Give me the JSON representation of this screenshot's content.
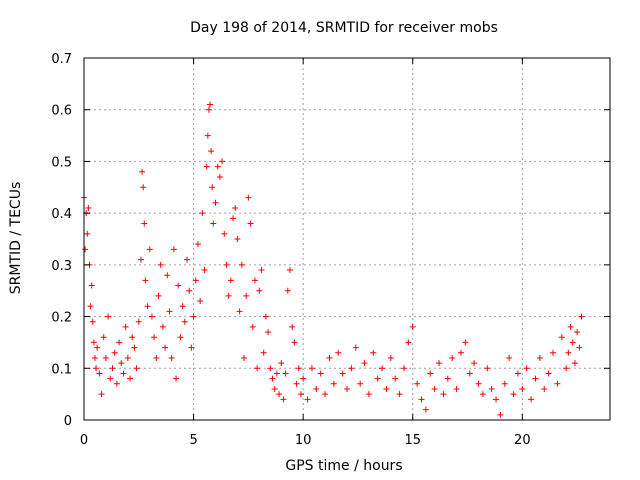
{
  "chart_data": {
    "type": "scatter",
    "title": "Day 198 of 2014, SRMTID for receiver mobs",
    "xlabel": "GPS time / hours",
    "ylabel": "SRMTID / TECUs",
    "xlim": [
      0,
      24
    ],
    "ylim": [
      0,
      0.7
    ],
    "xticks": [
      0,
      5,
      10,
      15,
      20
    ],
    "xtick_labels": [
      "0",
      "5",
      "10",
      "15",
      "20"
    ],
    "yticks": [
      0,
      0.1,
      0.2,
      0.3,
      0.4,
      0.5,
      0.6,
      0.7
    ],
    "ytick_labels": [
      "0",
      "0.1",
      "0.2",
      "0.3",
      "0.4",
      "0.5",
      "0.6",
      "0.7"
    ],
    "grid": true,
    "marker": "+",
    "color": "#ff0000",
    "series": [
      {
        "name": "SRMTID",
        "points": [
          [
            0.0,
            0.43
          ],
          [
            0.05,
            0.33
          ],
          [
            0.1,
            0.4
          ],
          [
            0.15,
            0.36
          ],
          [
            0.2,
            0.41
          ],
          [
            0.25,
            0.3
          ],
          [
            0.3,
            0.22
          ],
          [
            0.35,
            0.26
          ],
          [
            0.4,
            0.19
          ],
          [
            0.45,
            0.15
          ],
          [
            0.5,
            0.12
          ],
          [
            0.55,
            0.1
          ],
          [
            0.6,
            0.14
          ],
          [
            0.7,
            0.09
          ],
          [
            0.8,
            0.05
          ],
          [
            0.9,
            0.16
          ],
          [
            1.0,
            0.12
          ],
          [
            1.1,
            0.2
          ],
          [
            1.2,
            0.08
          ],
          [
            1.3,
            0.1
          ],
          [
            1.4,
            0.13
          ],
          [
            1.5,
            0.07
          ],
          [
            1.6,
            0.15
          ],
          [
            1.7,
            0.11
          ],
          [
            1.8,
            0.09
          ],
          [
            1.9,
            0.18
          ],
          [
            2.0,
            0.12
          ],
          [
            2.1,
            0.08
          ],
          [
            2.2,
            0.16
          ],
          [
            2.3,
            0.14
          ],
          [
            2.4,
            0.1
          ],
          [
            2.5,
            0.19
          ],
          [
            2.6,
            0.31
          ],
          [
            2.65,
            0.48
          ],
          [
            2.7,
            0.45
          ],
          [
            2.75,
            0.38
          ],
          [
            2.8,
            0.27
          ],
          [
            2.9,
            0.22
          ],
          [
            3.0,
            0.33
          ],
          [
            3.1,
            0.2
          ],
          [
            3.2,
            0.16
          ],
          [
            3.3,
            0.12
          ],
          [
            3.4,
            0.24
          ],
          [
            3.5,
            0.3
          ],
          [
            3.6,
            0.18
          ],
          [
            3.7,
            0.14
          ],
          [
            3.8,
            0.28
          ],
          [
            3.9,
            0.21
          ],
          [
            4.0,
            0.12
          ],
          [
            4.1,
            0.33
          ],
          [
            4.2,
            0.08
          ],
          [
            4.3,
            0.26
          ],
          [
            4.4,
            0.16
          ],
          [
            4.5,
            0.22
          ],
          [
            4.6,
            0.19
          ],
          [
            4.7,
            0.31
          ],
          [
            4.8,
            0.25
          ],
          [
            4.9,
            0.14
          ],
          [
            5.0,
            0.2
          ],
          [
            5.1,
            0.27
          ],
          [
            5.2,
            0.34
          ],
          [
            5.3,
            0.23
          ],
          [
            5.4,
            0.4
          ],
          [
            5.5,
            0.29
          ],
          [
            5.6,
            0.49
          ],
          [
            5.65,
            0.55
          ],
          [
            5.7,
            0.6
          ],
          [
            5.75,
            0.61
          ],
          [
            5.8,
            0.52
          ],
          [
            5.85,
            0.45
          ],
          [
            5.9,
            0.38
          ],
          [
            6.0,
            0.42
          ],
          [
            6.1,
            0.49
          ],
          [
            6.2,
            0.47
          ],
          [
            6.3,
            0.5
          ],
          [
            6.4,
            0.36
          ],
          [
            6.5,
            0.3
          ],
          [
            6.6,
            0.24
          ],
          [
            6.7,
            0.27
          ],
          [
            6.8,
            0.39
          ],
          [
            6.9,
            0.41
          ],
          [
            7.0,
            0.35
          ],
          [
            7.1,
            0.21
          ],
          [
            7.2,
            0.3
          ],
          [
            7.3,
            0.12
          ],
          [
            7.4,
            0.24
          ],
          [
            7.5,
            0.43
          ],
          [
            7.6,
            0.38
          ],
          [
            7.7,
            0.18
          ],
          [
            7.8,
            0.27
          ],
          [
            7.9,
            0.1
          ],
          [
            8.0,
            0.25
          ],
          [
            8.1,
            0.29
          ],
          [
            8.2,
            0.13
          ],
          [
            8.3,
            0.2
          ],
          [
            8.4,
            0.17
          ],
          [
            8.5,
            0.1
          ],
          [
            8.6,
            0.08
          ],
          [
            8.7,
            0.06
          ],
          [
            8.8,
            0.09
          ],
          [
            8.9,
            0.05
          ],
          [
            9.0,
            0.11
          ],
          [
            9.1,
            0.04
          ],
          [
            9.2,
            0.09
          ],
          [
            9.3,
            0.25
          ],
          [
            9.4,
            0.29
          ],
          [
            9.5,
            0.18
          ],
          [
            9.6,
            0.15
          ],
          [
            9.7,
            0.07
          ],
          [
            9.8,
            0.1
          ],
          [
            9.9,
            0.05
          ],
          [
            10.0,
            0.08
          ],
          [
            10.2,
            0.04
          ],
          [
            10.4,
            0.1
          ],
          [
            10.6,
            0.06
          ],
          [
            10.8,
            0.09
          ],
          [
            11.0,
            0.05
          ],
          [
            11.2,
            0.12
          ],
          [
            11.4,
            0.07
          ],
          [
            11.6,
            0.13
          ],
          [
            11.8,
            0.09
          ],
          [
            12.0,
            0.06
          ],
          [
            12.2,
            0.1
          ],
          [
            12.4,
            0.14
          ],
          [
            12.6,
            0.07
          ],
          [
            12.8,
            0.11
          ],
          [
            13.0,
            0.05
          ],
          [
            13.2,
            0.13
          ],
          [
            13.4,
            0.08
          ],
          [
            13.6,
            0.1
          ],
          [
            13.8,
            0.06
          ],
          [
            14.0,
            0.12
          ],
          [
            14.2,
            0.08
          ],
          [
            14.4,
            0.05
          ],
          [
            14.6,
            0.1
          ],
          [
            14.8,
            0.15
          ],
          [
            15.0,
            0.18
          ],
          [
            15.2,
            0.07
          ],
          [
            15.4,
            0.04
          ],
          [
            15.6,
            0.02
          ],
          [
            15.8,
            0.09
          ],
          [
            16.0,
            0.06
          ],
          [
            16.2,
            0.11
          ],
          [
            16.4,
            0.05
          ],
          [
            16.6,
            0.08
          ],
          [
            16.8,
            0.12
          ],
          [
            17.0,
            0.06
          ],
          [
            17.2,
            0.13
          ],
          [
            17.4,
            0.15
          ],
          [
            17.6,
            0.09
          ],
          [
            17.8,
            0.11
          ],
          [
            18.0,
            0.07
          ],
          [
            18.2,
            0.05
          ],
          [
            18.4,
            0.1
          ],
          [
            18.6,
            0.06
          ],
          [
            18.8,
            0.04
          ],
          [
            19.0,
            0.01
          ],
          [
            19.2,
            0.07
          ],
          [
            19.4,
            0.12
          ],
          [
            19.6,
            0.05
          ],
          [
            19.8,
            0.09
          ],
          [
            20.0,
            0.06
          ],
          [
            20.2,
            0.1
          ],
          [
            20.4,
            0.04
          ],
          [
            20.6,
            0.08
          ],
          [
            20.8,
            0.12
          ],
          [
            21.0,
            0.06
          ],
          [
            21.2,
            0.09
          ],
          [
            21.4,
            0.13
          ],
          [
            21.6,
            0.07
          ],
          [
            21.8,
            0.16
          ],
          [
            22.0,
            0.1
          ],
          [
            22.1,
            0.13
          ],
          [
            22.2,
            0.18
          ],
          [
            22.3,
            0.15
          ],
          [
            22.4,
            0.11
          ],
          [
            22.5,
            0.17
          ],
          [
            22.6,
            0.14
          ],
          [
            22.7,
            0.2
          ]
        ]
      }
    ]
  }
}
